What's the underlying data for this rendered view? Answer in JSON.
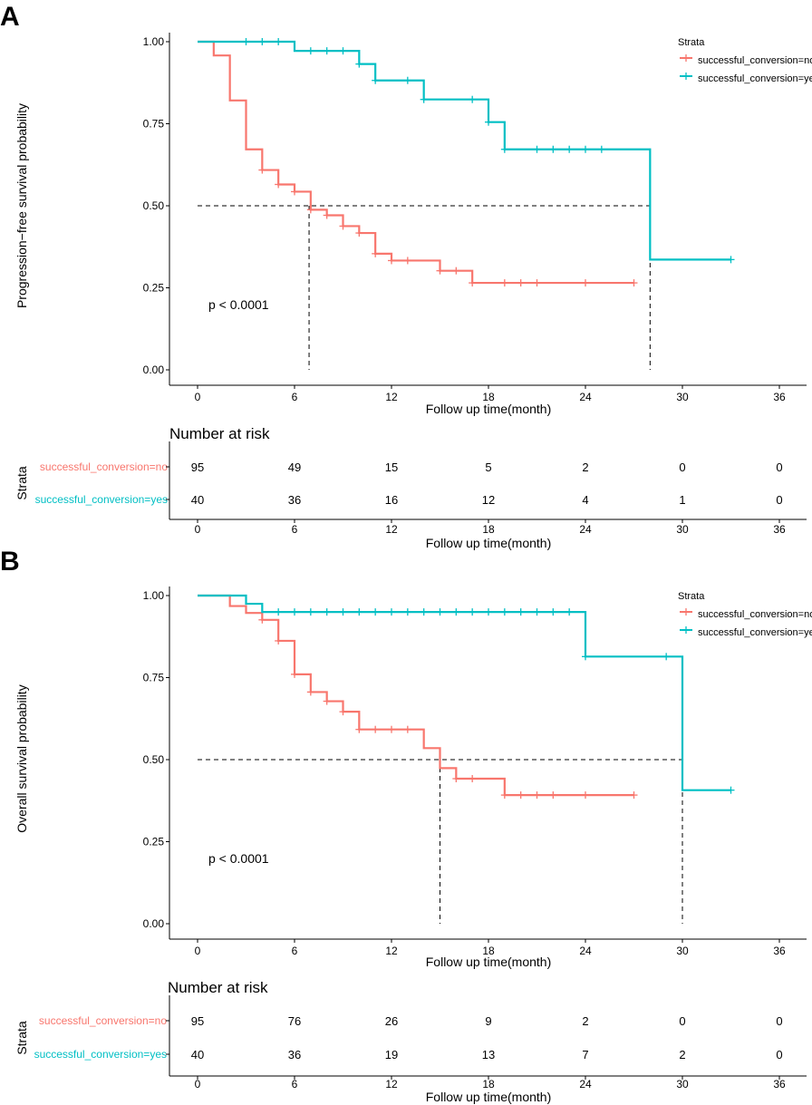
{
  "colors": {
    "no": "#F8766D",
    "yes": "#00BFC4"
  },
  "chart_data": [
    {
      "type": "line",
      "subtype": "kaplan-meier",
      "panel": "A",
      "ylabel": "Progression−free survival  probability",
      "xlabel": "Follow up time(month)",
      "xlim": [
        0,
        36
      ],
      "ylim": [
        0,
        1
      ],
      "x_ticks": [
        "0",
        "6",
        "12",
        "18",
        "24",
        "30",
        "36"
      ],
      "y_ticks": [
        "0.00",
        "0.25",
        "0.50",
        "0.75",
        "1.00"
      ],
      "p_value": "p < 0.0001",
      "legend_title": "Strata",
      "series": [
        {
          "name": "successful_conversion=no",
          "color_key": "no",
          "steps": [
            [
              0,
              1.0
            ],
            [
              1,
              0.958
            ],
            [
              2,
              0.821
            ],
            [
              3,
              0.672
            ],
            [
              4,
              0.609
            ],
            [
              5,
              0.565
            ],
            [
              6,
              0.543
            ],
            [
              7,
              0.488
            ],
            [
              8,
              0.471
            ],
            [
              9,
              0.438
            ],
            [
              10,
              0.417
            ],
            [
              11,
              0.354
            ],
            [
              12,
              0.333
            ],
            [
              15,
              0.302
            ],
            [
              17,
              0.265
            ],
            [
              27,
              0.265
            ]
          ],
          "censor": [
            4,
            5,
            6,
            7,
            8,
            9,
            10,
            11,
            12,
            13,
            15,
            16,
            17,
            19,
            20,
            21,
            24,
            27
          ],
          "median": 6.9
        },
        {
          "name": "successful_conversion=yes",
          "color_key": "yes",
          "steps": [
            [
              0,
              1.0
            ],
            [
              6,
              0.972
            ],
            [
              10,
              0.932
            ],
            [
              11,
              0.882
            ],
            [
              14,
              0.824
            ],
            [
              18,
              0.755
            ],
            [
              19,
              0.672
            ],
            [
              28,
              0.336
            ],
            [
              33,
              0.336
            ]
          ],
          "censor": [
            3,
            4,
            5,
            7,
            8,
            9,
            10,
            11,
            13,
            14,
            17,
            18,
            19,
            21,
            22,
            23,
            24,
            25,
            33
          ],
          "median": 28
        }
      ],
      "risk_table": {
        "title": "Number at risk",
        "strata_label": "Strata",
        "times": [
          "0",
          "6",
          "12",
          "18",
          "24",
          "30",
          "36"
        ],
        "rows": [
          {
            "name": "successful_conversion=no",
            "color_key": "no",
            "counts": [
              "95",
              "49",
              "15",
              "5",
              "2",
              "0",
              "0"
            ]
          },
          {
            "name": "successful_conversion=yes",
            "color_key": "yes",
            "counts": [
              "40",
              "36",
              "16",
              "12",
              "4",
              "1",
              "0"
            ]
          }
        ],
        "xlabel": "Follow up time(month)"
      }
    },
    {
      "type": "line",
      "subtype": "kaplan-meier",
      "panel": "B",
      "ylabel": "Overall survival probability",
      "xlabel": "Follow up time(month)",
      "xlim": [
        0,
        36
      ],
      "ylim": [
        0,
        1
      ],
      "x_ticks": [
        "0",
        "6",
        "12",
        "18",
        "24",
        "30",
        "36"
      ],
      "y_ticks": [
        "0.00",
        "0.25",
        "0.50",
        "0.75",
        "1.00"
      ],
      "p_value": "p < 0.0001",
      "legend_title": "Strata",
      "series": [
        {
          "name": "successful_conversion=no",
          "color_key": "no",
          "steps": [
            [
              0,
              1.0
            ],
            [
              2,
              0.968
            ],
            [
              3,
              0.947
            ],
            [
              4,
              0.926
            ],
            [
              5,
              0.862
            ],
            [
              6,
              0.76
            ],
            [
              7,
              0.706
            ],
            [
              8,
              0.678
            ],
            [
              9,
              0.646
            ],
            [
              10,
              0.592
            ],
            [
              14,
              0.535
            ],
            [
              15,
              0.474
            ],
            [
              16,
              0.442
            ],
            [
              19,
              0.392
            ],
            [
              27,
              0.392
            ]
          ],
          "censor": [
            4,
            5,
            6,
            7,
            8,
            9,
            10,
            11,
            12,
            13,
            16,
            17,
            19,
            20,
            21,
            22,
            24,
            27
          ],
          "median": 15
        },
        {
          "name": "successful_conversion=yes",
          "color_key": "yes",
          "steps": [
            [
              0,
              1.0
            ],
            [
              3,
              0.975
            ],
            [
              4,
              0.95
            ],
            [
              24,
              0.814
            ],
            [
              30,
              0.407
            ],
            [
              33,
              0.407
            ]
          ],
          "censor": [
            5,
            6,
            7,
            8,
            9,
            10,
            11,
            12,
            13,
            14,
            15,
            16,
            17,
            18,
            19,
            20,
            21,
            22,
            23,
            24,
            29,
            33
          ],
          "median": 30
        }
      ],
      "risk_table": {
        "title": "Number at risk",
        "strata_label": "Strata",
        "times": [
          "0",
          "6",
          "12",
          "18",
          "24",
          "30",
          "36"
        ],
        "rows": [
          {
            "name": "successful_conversion=no",
            "color_key": "no",
            "counts": [
              "95",
              "76",
              "26",
              "9",
              "2",
              "0",
              "0"
            ]
          },
          {
            "name": "successful_conversion=yes",
            "color_key": "yes",
            "counts": [
              "40",
              "36",
              "19",
              "13",
              "7",
              "2",
              "0"
            ]
          }
        ],
        "xlabel": "Follow up time(month)"
      }
    }
  ]
}
